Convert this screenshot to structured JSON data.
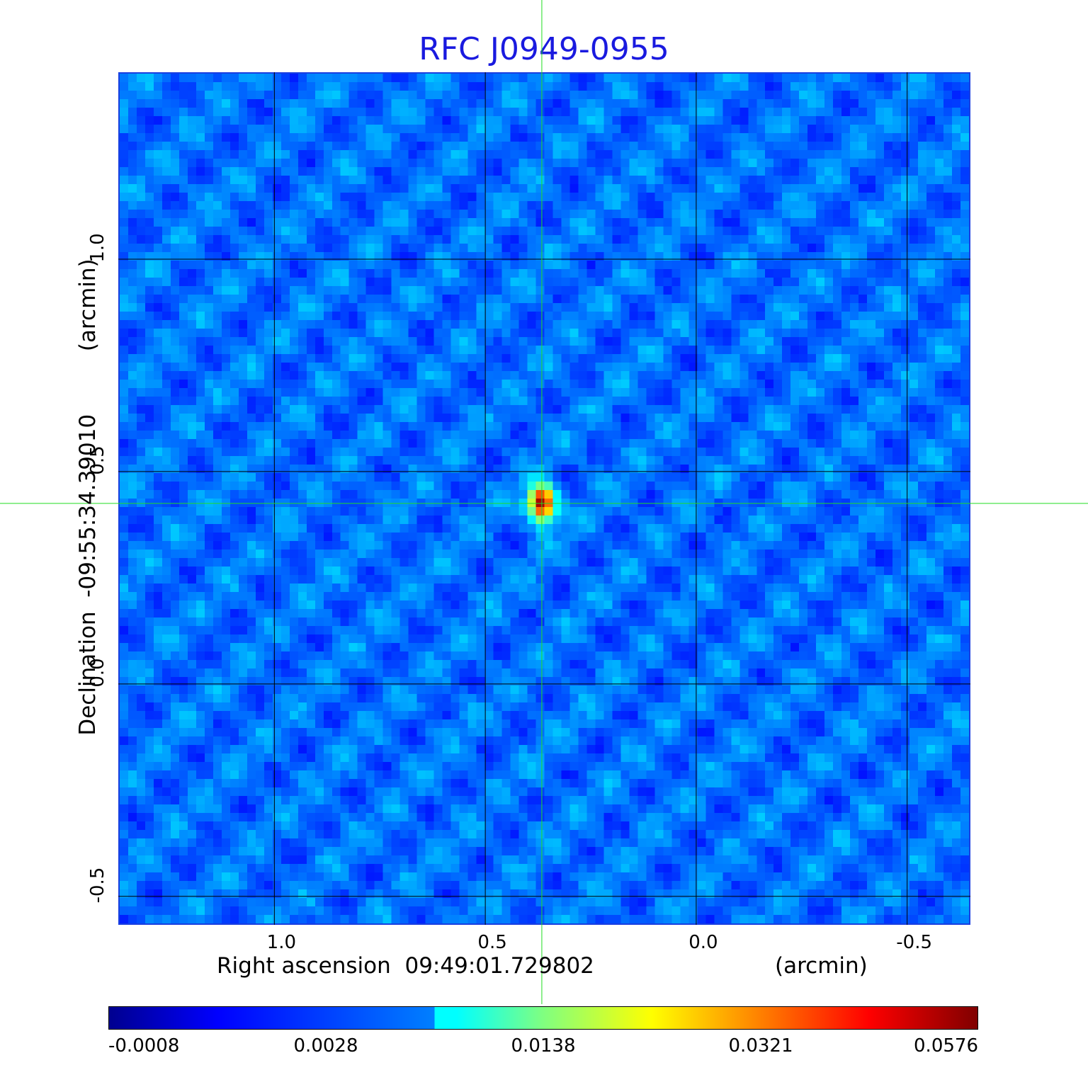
{
  "chart_data": {
    "type": "heatmap",
    "title": "RFC J0949-0955",
    "xlabel_left": "Right ascension  09:49:01.729802",
    "xlabel_unit": "(arcmin)",
    "ylabel": "Declination  -09:55:34.39010         (arcmin)",
    "x_ticks": [
      "1.0",
      "0.5",
      "0.0",
      "-0.5"
    ],
    "x_tick_values": [
      1.0,
      0.5,
      0.0,
      -0.5
    ],
    "y_ticks": [
      "1.0",
      "0.5",
      "0.0",
      "-0.5"
    ],
    "y_tick_values": [
      1.0,
      0.5,
      0.0,
      -0.5
    ],
    "xlim": [
      1.37,
      -0.65
    ],
    "ylim": [
      -0.567,
      1.44
    ],
    "grid": true,
    "crosshair": {
      "x": 0.366,
      "y": 0.425,
      "color": "#22dd22"
    },
    "source_peak": {
      "x": 0.366,
      "y": 0.425,
      "value": 0.0576
    },
    "colorbar": {
      "ticks": [
        "-0.0008",
        "0.0028",
        "0.0138",
        "0.0321",
        "0.0576"
      ],
      "min": -0.0008,
      "max": 0.0576,
      "colormap": "jet"
    }
  }
}
